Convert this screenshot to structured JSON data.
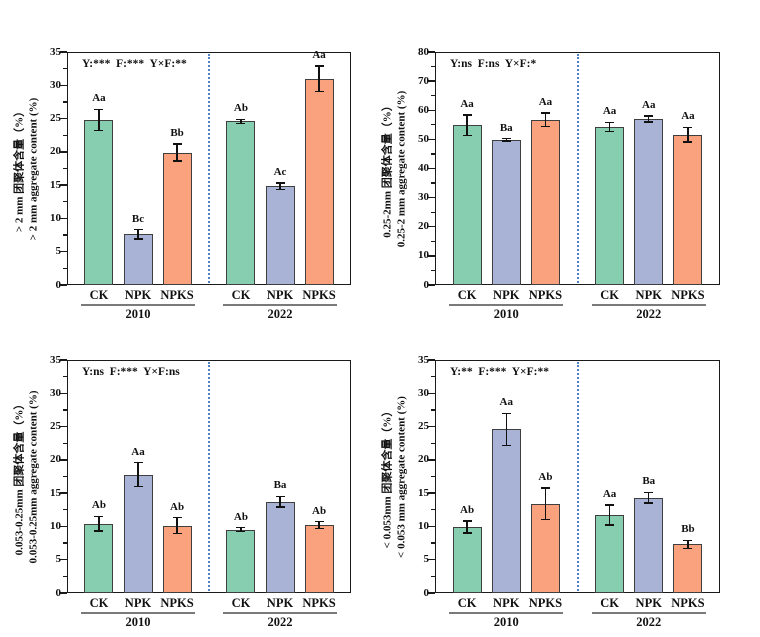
{
  "figure": {
    "description_labels": [
      "CK",
      "NPK",
      "NPKS"
    ],
    "year_groups": [
      "2010",
      "2022"
    ]
  },
  "colors": {
    "background": "#ffffff",
    "ck_fill": "#87CEB1",
    "npk_fill": "#A8B3D6",
    "npks_fill": "#FAA17E",
    "bar_border": "#3F3F3F",
    "axis": "#1A1A1A",
    "error_bar": "#111111",
    "divider": "#4E82C4",
    "underline": "#7A7A7A",
    "text": "#111111"
  },
  "chart_data": [
    {
      "id": "gt2mm",
      "type": "bar",
      "ylabel_cn": "> 2 mm 团聚体含量（%）",
      "ylabel_en": "> 2 mm aggregate content (%)",
      "annotation": "Y:***  F:***  Y×F:**",
      "ylim": [
        0,
        35
      ],
      "ytick_step": 5,
      "grid": false,
      "categories": [
        "CK",
        "NPK",
        "NPKS"
      ],
      "groups": [
        "2010",
        "2022"
      ],
      "series": [
        {
          "name": "2010",
          "values": [
            24.8,
            7.6,
            19.9
          ],
          "errors": [
            1.6,
            0.7,
            1.3
          ],
          "letters": [
            "Aa",
            "Bc",
            "Bb"
          ]
        },
        {
          "name": "2022",
          "values": [
            24.6,
            14.8,
            31.0
          ],
          "errors": [
            0.3,
            0.5,
            1.9
          ],
          "letters": [
            "Ab",
            "Ac",
            "Aa"
          ]
        }
      ]
    },
    {
      "id": "mm025to2",
      "type": "bar",
      "ylabel_cn": "0.25-2mm 团聚体含量（%）",
      "ylabel_en": "0.25-2 mm aggregate content (%)",
      "annotation": "Y:ns  F:ns  Y×F:*",
      "ylim": [
        0,
        80
      ],
      "ytick_step": 10,
      "grid": false,
      "categories": [
        "CK",
        "NPK",
        "NPKS"
      ],
      "groups": [
        "2010",
        "2022"
      ],
      "series": [
        {
          "name": "2010",
          "values": [
            54.9,
            49.9,
            56.8
          ],
          "errors": [
            3.5,
            0.4,
            2.3
          ],
          "letters": [
            "Aa",
            "Ba",
            "Aa"
          ]
        },
        {
          "name": "2022",
          "values": [
            54.3,
            57.0,
            51.6
          ],
          "errors": [
            1.5,
            1.0,
            2.5
          ],
          "letters": [
            "Aa",
            "Aa",
            "Aa"
          ]
        }
      ]
    },
    {
      "id": "mm0053to025",
      "type": "bar",
      "ylabel_cn": "0.053-0.25mm 团聚体含量（%）",
      "ylabel_en": "0.053-0.25mm aggregate content (%)",
      "annotation": "Y:ns  F:***  Y×F:ns",
      "ylim": [
        0,
        35
      ],
      "ytick_step": 5,
      "grid": false,
      "categories": [
        "CK",
        "NPK",
        "NPKS"
      ],
      "groups": [
        "2010",
        "2022"
      ],
      "series": [
        {
          "name": "2010",
          "values": [
            10.4,
            17.8,
            10.1
          ],
          "errors": [
            1.1,
            1.8,
            1.2
          ],
          "letters": [
            "Ab",
            "Aa",
            "Ab"
          ]
        },
        {
          "name": "2022",
          "values": [
            9.5,
            13.7,
            10.2
          ],
          "errors": [
            0.3,
            0.8,
            0.5
          ],
          "letters": [
            "Ab",
            "Ba",
            "Ab"
          ]
        }
      ]
    },
    {
      "id": "lt0053mm",
      "type": "bar",
      "ylabel_cn": "< 0.053mm 团聚体含量（%）",
      "ylabel_en": "< 0.053 mm aggregate content (%)",
      "annotation": "Y:**  F:***  Y×F:**",
      "ylim": [
        0,
        35
      ],
      "ytick_step": 5,
      "grid": false,
      "categories": [
        "CK",
        "NPK",
        "NPKS"
      ],
      "groups": [
        "2010",
        "2022"
      ],
      "series": [
        {
          "name": "2010",
          "values": [
            9.9,
            24.6,
            13.4
          ],
          "errors": [
            0.9,
            2.4,
            2.4
          ],
          "letters": [
            "Ab",
            "Aa",
            "Ab"
          ]
        },
        {
          "name": "2022",
          "values": [
            11.7,
            14.3,
            7.3
          ],
          "errors": [
            1.5,
            0.8,
            0.6
          ],
          "letters": [
            "Aa",
            "Ba",
            "Bb"
          ]
        }
      ]
    }
  ]
}
